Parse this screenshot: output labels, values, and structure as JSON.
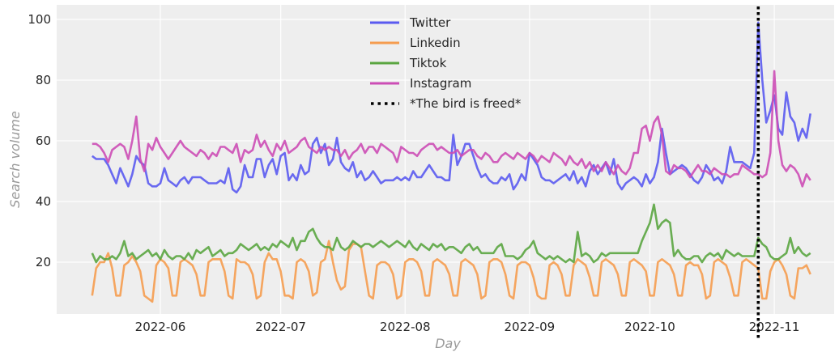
{
  "chart_data": {
    "type": "line",
    "title": "",
    "xlabel": "Day",
    "ylabel": "Search volume",
    "x_start": "2022-05-15",
    "x_end": "2022-11-10",
    "x_ticks": [
      "2022-06",
      "2022-07",
      "2022-08",
      "2022-09",
      "2022-10",
      "2022-11"
    ],
    "x_tick_dates": [
      "2022-06-01",
      "2022-07-01",
      "2022-08-01",
      "2022-09-01",
      "2022-10-01",
      "2022-11-01"
    ],
    "y_ticks": [
      20,
      40,
      60,
      80,
      100
    ],
    "ylim": [
      2.9,
      102.6
    ],
    "grid": true,
    "legend_placement": "top-center",
    "series": [
      {
        "name": "Twitter",
        "color": "#5a5af0",
        "values": [
          55,
          54,
          54,
          54,
          52,
          49,
          46,
          51,
          48,
          45,
          49,
          55,
          53,
          52,
          46,
          45,
          45,
          46,
          51,
          47,
          46,
          45,
          47,
          48,
          46,
          48,
          48,
          48,
          47,
          46,
          46,
          46,
          47,
          46,
          51,
          44,
          43,
          45,
          52,
          48,
          48,
          54,
          54,
          48,
          52,
          54,
          49,
          55,
          56,
          47,
          49,
          47,
          52,
          49,
          50,
          59,
          61,
          56,
          59,
          52,
          54,
          61,
          53,
          51,
          50,
          53,
          48,
          50,
          47,
          48,
          50,
          48,
          46,
          47,
          47,
          47,
          48,
          47,
          48,
          47,
          50,
          48,
          48,
          50,
          52,
          50,
          48,
          48,
          47,
          47,
          62,
          52,
          55,
          59,
          59,
          55,
          51,
          48,
          49,
          47,
          46,
          46,
          48,
          47,
          49,
          44,
          46,
          49,
          47,
          56,
          54,
          52,
          48,
          47,
          47,
          46,
          47,
          48,
          49,
          47,
          50,
          46,
          48,
          45,
          50,
          52,
          49,
          51,
          53,
          49,
          54,
          46,
          44,
          46,
          47,
          48,
          47,
          45,
          49,
          46,
          48,
          53,
          64,
          56,
          49,
          50,
          51,
          52,
          51,
          49,
          47,
          46,
          48,
          52,
          50,
          47,
          48,
          46,
          50,
          58,
          53,
          53,
          53,
          52,
          51,
          56,
          99,
          80,
          66,
          70,
          75,
          64,
          62,
          76,
          68,
          66,
          60,
          64,
          61,
          69
        ]
      },
      {
        "name": "Linkedin",
        "color": "#f59c4f",
        "values": [
          9,
          18,
          20,
          20,
          23,
          18,
          9,
          9,
          19,
          20,
          22,
          20,
          17,
          9,
          8,
          7,
          19,
          21,
          20,
          18,
          9,
          9,
          20,
          21,
          20,
          19,
          16,
          9,
          9,
          20,
          21,
          21,
          21,
          17,
          9,
          8,
          21,
          20,
          20,
          19,
          16,
          8,
          9,
          20,
          23,
          21,
          21,
          17,
          9,
          9,
          8,
          20,
          21,
          20,
          17,
          9,
          10,
          20,
          21,
          27,
          20,
          14,
          11,
          12,
          24,
          26,
          26,
          25,
          17,
          9,
          8,
          19,
          20,
          20,
          19,
          16,
          8,
          9,
          20,
          21,
          21,
          20,
          17,
          9,
          9,
          20,
          21,
          20,
          19,
          16,
          9,
          9,
          20,
          21,
          20,
          19,
          16,
          8,
          9,
          20,
          21,
          21,
          20,
          16,
          9,
          8,
          19,
          20,
          20,
          19,
          15,
          9,
          8,
          8,
          19,
          20,
          19,
          16,
          9,
          9,
          19,
          21,
          20,
          19,
          15,
          9,
          9,
          20,
          21,
          20,
          19,
          16,
          9,
          9,
          20,
          21,
          20,
          19,
          17,
          9,
          9,
          20,
          21,
          20,
          19,
          16,
          9,
          9,
          19,
          20,
          19,
          19,
          16,
          8,
          9,
          20,
          21,
          20,
          19,
          15,
          9,
          9,
          20,
          21,
          20,
          19,
          18,
          8,
          8,
          17,
          20,
          21,
          19,
          16,
          9,
          8,
          18,
          18,
          19,
          16
        ]
      },
      {
        "name": "Tiktok",
        "color": "#5aa540",
        "values": [
          23,
          20,
          22,
          21,
          21,
          22,
          21,
          23,
          27,
          22,
          23,
          21,
          22,
          23,
          24,
          22,
          23,
          21,
          24,
          22,
          21,
          22,
          22,
          21,
          23,
          21,
          24,
          23,
          24,
          25,
          22,
          23,
          24,
          22,
          23,
          23,
          24,
          26,
          25,
          24,
          25,
          26,
          24,
          25,
          24,
          26,
          25,
          27,
          26,
          25,
          28,
          24,
          27,
          27,
          30,
          31,
          28,
          26,
          25,
          25,
          24,
          28,
          25,
          24,
          25,
          27,
          26,
          25,
          26,
          26,
          25,
          26,
          27,
          26,
          25,
          26,
          27,
          26,
          25,
          27,
          25,
          24,
          26,
          25,
          24,
          26,
          25,
          26,
          24,
          25,
          25,
          24,
          23,
          25,
          26,
          24,
          25,
          23,
          23,
          23,
          23,
          25,
          26,
          22,
          22,
          22,
          21,
          22,
          24,
          25,
          27,
          23,
          22,
          21,
          22,
          21,
          22,
          21,
          20,
          21,
          20,
          30,
          22,
          23,
          22,
          20,
          21,
          23,
          22,
          23,
          23,
          23,
          23,
          23,
          23,
          23,
          23,
          27,
          30,
          33,
          39,
          31,
          33,
          34,
          33,
          22,
          24,
          22,
          21,
          21,
          22,
          22,
          20,
          22,
          23,
          22,
          23,
          21,
          24,
          23,
          22,
          23,
          22,
          22,
          22,
          22,
          28,
          26,
          25,
          22,
          21,
          21,
          22,
          23,
          28,
          23,
          25,
          23,
          22,
          23
        ]
      },
      {
        "name": "Instagram",
        "color": "#cc4db5",
        "values": [
          59,
          59,
          58,
          56,
          53,
          57,
          58,
          59,
          58,
          54,
          60,
          68,
          54,
          50,
          59,
          57,
          61,
          58,
          56,
          54,
          56,
          58,
          60,
          58,
          57,
          56,
          55,
          57,
          56,
          54,
          56,
          55,
          58,
          58,
          57,
          56,
          59,
          53,
          57,
          56,
          57,
          62,
          58,
          60,
          57,
          55,
          59,
          57,
          60,
          56,
          57,
          58,
          60,
          61,
          58,
          57,
          56,
          58,
          57,
          58,
          57,
          57,
          55,
          57,
          54,
          56,
          57,
          59,
          56,
          58,
          58,
          56,
          59,
          58,
          57,
          56,
          53,
          58,
          57,
          56,
          56,
          55,
          57,
          58,
          59,
          59,
          57,
          58,
          57,
          56,
          56,
          57,
          55,
          56,
          57,
          57,
          55,
          54,
          56,
          55,
          53,
          53,
          55,
          56,
          55,
          54,
          56,
          55,
          54,
          56,
          55,
          53,
          55,
          54,
          53,
          56,
          55,
          54,
          52,
          55,
          53,
          52,
          54,
          51,
          53,
          50,
          52,
          50,
          53,
          51,
          49,
          52,
          50,
          49,
          51,
          56,
          56,
          64,
          65,
          60,
          66,
          68,
          62,
          50,
          49,
          52,
          51,
          51,
          50,
          48,
          50,
          52,
          50,
          50,
          49,
          51,
          50,
          49,
          49,
          48,
          49,
          49,
          52,
          51,
          50,
          49,
          49,
          48,
          49,
          56,
          83,
          60,
          52,
          50,
          52,
          51,
          49,
          45,
          49,
          47
        ]
      }
    ],
    "annotations": [
      {
        "type": "vline",
        "date": "2022-10-28",
        "label": "*The bird is freed*",
        "style": "dotted",
        "color": "#000000"
      }
    ]
  }
}
